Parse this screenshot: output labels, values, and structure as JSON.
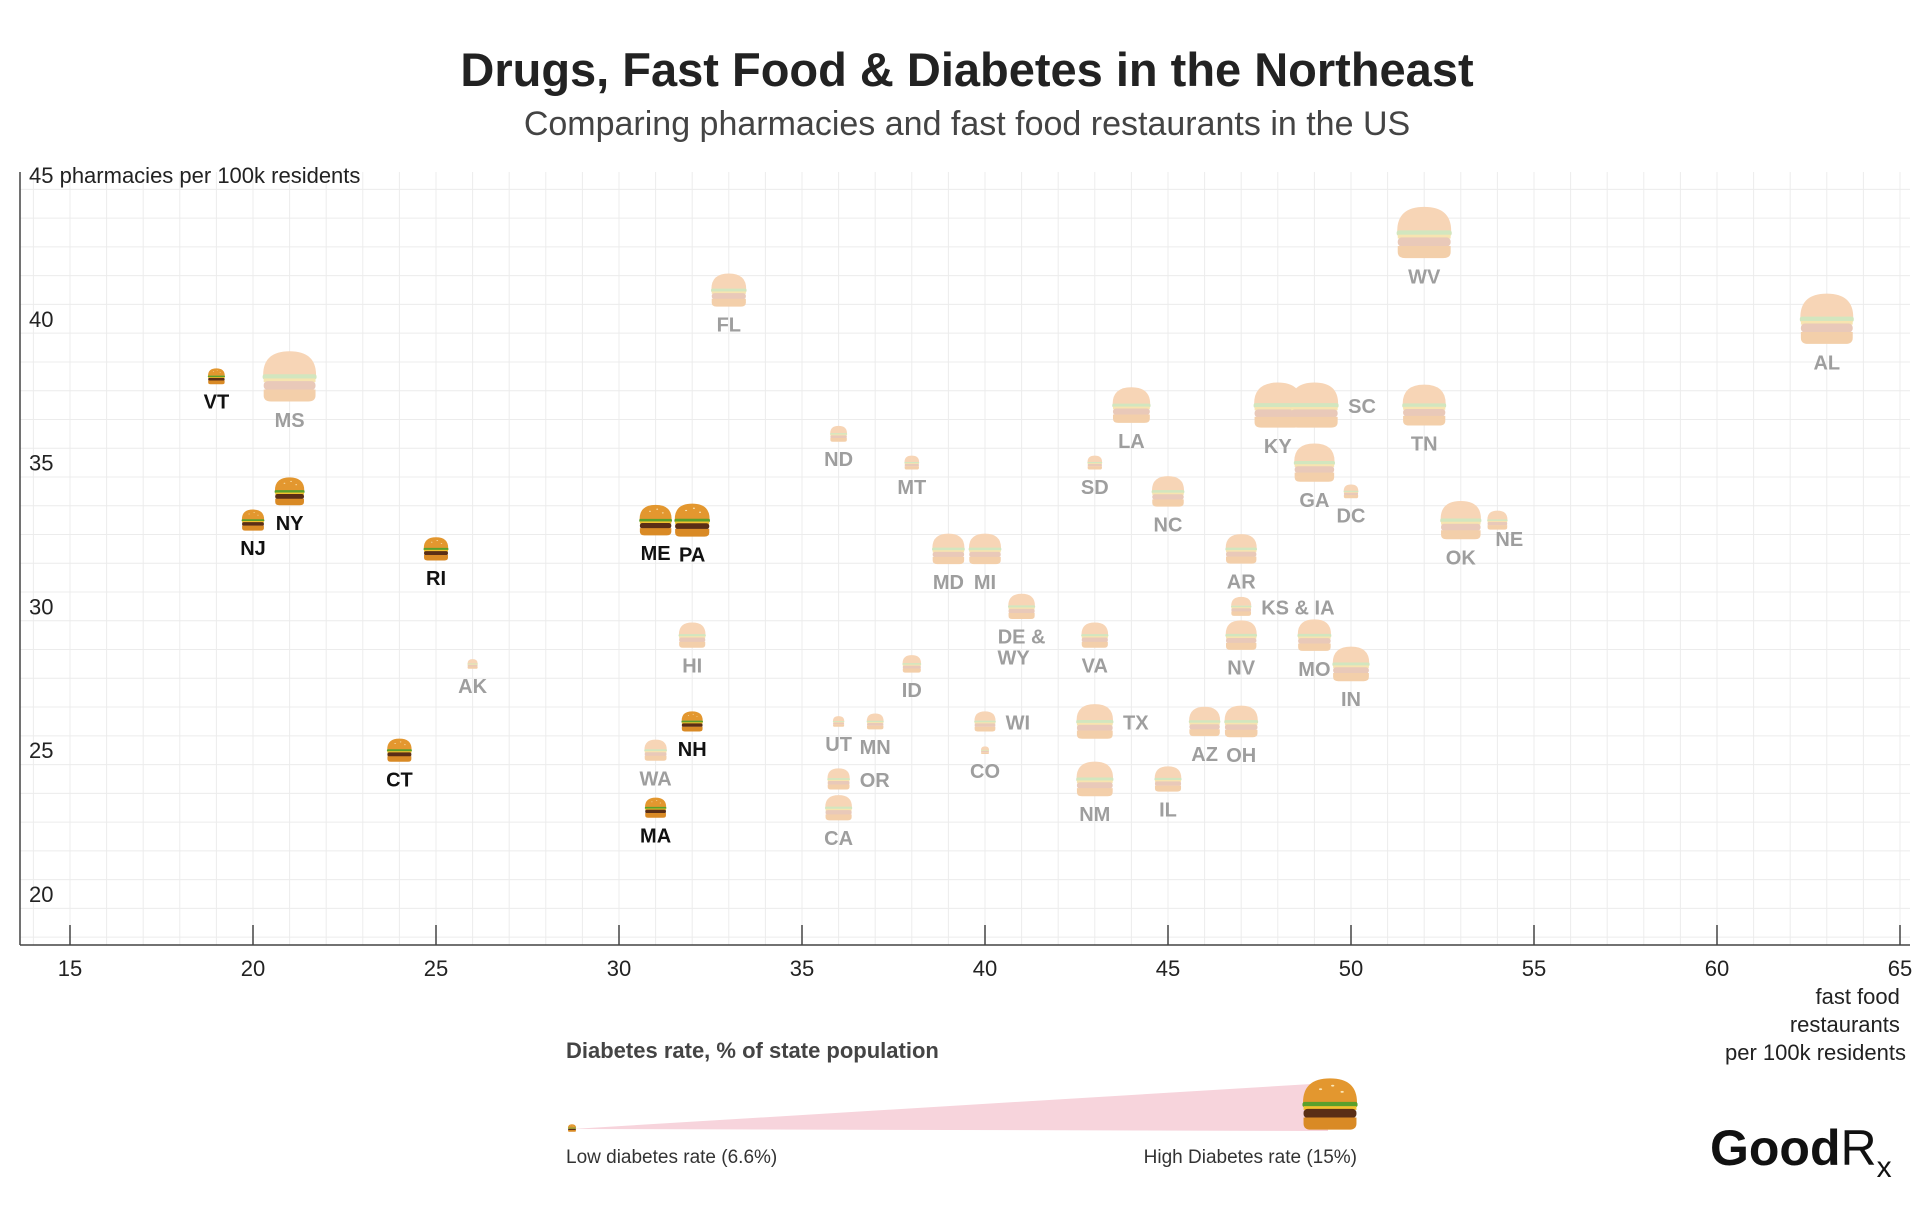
{
  "chart_data": {
    "type": "scatter",
    "title": "Drugs, Fast Food & Diabetes in the Northeast",
    "subtitle": "Comparing pharmacies and fast food restaurants in the US",
    "xlabel": [
      "fast food",
      "restaurants",
      "per 100k residents"
    ],
    "ylabel": "pharmacies per 100k residents",
    "xlim": [
      14,
      65.5
    ],
    "ylim": [
      18.3,
      45.5
    ],
    "xticks": [
      15,
      20,
      25,
      30,
      35,
      40,
      45,
      50,
      55,
      60,
      65
    ],
    "yticks": [
      20,
      25,
      30,
      35,
      40,
      45
    ],
    "grid": true,
    "marker": "burger-icon",
    "highlight_colors": {
      "bun": "#e09a3a",
      "bun_dark": "#c97a22",
      "lettuce": "#5aa02c",
      "patty": "#5a2e16",
      "cheese": "#f2c12e"
    },
    "muted_color": "#f5d5b8",
    "muted_label_color": "#9e9e9e",
    "highlight_label_color": "#111111",
    "size_scale": {
      "min_rate": 6.6,
      "max_rate": 15
    },
    "points": [
      {
        "label": "VT",
        "x": 19,
        "y": 38,
        "rate": 8.2,
        "highlight": true
      },
      {
        "label": "MS",
        "x": 21,
        "y": 38,
        "rate": 14.8,
        "highlight": false
      },
      {
        "label": "NY",
        "x": 21,
        "y": 34,
        "rate": 10.5,
        "highlight": true
      },
      {
        "label": "NJ",
        "x": 20,
        "y": 33,
        "rate": 9.2,
        "highlight": true
      },
      {
        "label": "RI",
        "x": 25,
        "y": 32,
        "rate": 9.6,
        "highlight": true
      },
      {
        "label": "CT",
        "x": 24,
        "y": 25,
        "rate": 9.6,
        "highlight": true
      },
      {
        "label": "AK",
        "x": 26,
        "y": 28,
        "rate": 7.0,
        "highlight": false
      },
      {
        "label": "ME",
        "x": 31,
        "y": 33,
        "rate": 11.0,
        "highlight": true
      },
      {
        "label": "PA",
        "x": 32,
        "y": 33,
        "rate": 11.5,
        "highlight": true
      },
      {
        "label": "HI",
        "x": 32,
        "y": 29,
        "rate": 10.0,
        "highlight": false
      },
      {
        "label": "NH",
        "x": 32,
        "y": 26,
        "rate": 9.0,
        "highlight": true
      },
      {
        "label": "WA",
        "x": 31,
        "y": 25,
        "rate": 9.2,
        "highlight": false
      },
      {
        "label": "MA",
        "x": 31,
        "y": 23,
        "rate": 9.0,
        "highlight": true
      },
      {
        "label": "FL",
        "x": 33,
        "y": 41,
        "rate": 11.5,
        "highlight": false
      },
      {
        "label": "ND",
        "x": 36,
        "y": 36,
        "rate": 8.2,
        "highlight": false
      },
      {
        "label": "UT",
        "x": 36,
        "y": 26,
        "rate": 7.2,
        "highlight": false
      },
      {
        "label": "MN",
        "x": 37,
        "y": 26,
        "rate": 8.2,
        "highlight": false
      },
      {
        "label": "OR",
        "x": 36,
        "y": 24,
        "rate": 9.2,
        "highlight": false
      },
      {
        "label": "CA",
        "x": 36,
        "y": 23,
        "rate": 10.0,
        "highlight": false
      },
      {
        "label": "MT",
        "x": 38,
        "y": 35,
        "rate": 7.8,
        "highlight": false
      },
      {
        "label": "ID",
        "x": 38,
        "y": 28,
        "rate": 8.5,
        "highlight": false
      },
      {
        "label": "MD",
        "x": 39,
        "y": 32,
        "rate": 11.0,
        "highlight": false
      },
      {
        "label": "MI",
        "x": 40,
        "y": 32,
        "rate": 11.0,
        "highlight": false
      },
      {
        "label": "WI",
        "x": 40,
        "y": 26,
        "rate": 9.0,
        "highlight": false
      },
      {
        "label": "CO",
        "x": 40,
        "y": 25,
        "rate": 6.6,
        "highlight": false
      },
      {
        "label": "DE & WY",
        "x": 41,
        "y": 30,
        "rate": 10.0,
        "highlight": false
      },
      {
        "label": "SD",
        "x": 43,
        "y": 35,
        "rate": 7.8,
        "highlight": false
      },
      {
        "label": "VA",
        "x": 43,
        "y": 29,
        "rate": 10.0,
        "highlight": false
      },
      {
        "label": "TX",
        "x": 43,
        "y": 26,
        "rate": 11.8,
        "highlight": false
      },
      {
        "label": "NM",
        "x": 43,
        "y": 24,
        "rate": 11.8,
        "highlight": false
      },
      {
        "label": "LA",
        "x": 44,
        "y": 37,
        "rate": 12.0,
        "highlight": false
      },
      {
        "label": "NC",
        "x": 45,
        "y": 34,
        "rate": 11.0,
        "highlight": false
      },
      {
        "label": "IL",
        "x": 45,
        "y": 24,
        "rate": 10.0,
        "highlight": false
      },
      {
        "label": "AZ",
        "x": 46,
        "y": 26,
        "rate": 10.8,
        "highlight": false
      },
      {
        "label": "OH",
        "x": 47,
        "y": 26,
        "rate": 11.2,
        "highlight": false
      },
      {
        "label": "AR",
        "x": 47,
        "y": 32,
        "rate": 10.8,
        "highlight": false
      },
      {
        "label": "KS & IA",
        "x": 47,
        "y": 30,
        "rate": 8.8,
        "highlight": false
      },
      {
        "label": "NV",
        "x": 47,
        "y": 29,
        "rate": 10.8,
        "highlight": false
      },
      {
        "label": "KY",
        "x": 48,
        "y": 37,
        "rate": 13.8,
        "highlight": false
      },
      {
        "label": "SC",
        "x": 49,
        "y": 37,
        "rate": 13.8,
        "highlight": false
      },
      {
        "label": "GA",
        "x": 49,
        "y": 35,
        "rate": 12.5,
        "highlight": false
      },
      {
        "label": "MO",
        "x": 49,
        "y": 29,
        "rate": 11.2,
        "highlight": false
      },
      {
        "label": "DC",
        "x": 50,
        "y": 34,
        "rate": 7.8,
        "highlight": false
      },
      {
        "label": "IN",
        "x": 50,
        "y": 28,
        "rate": 11.8,
        "highlight": false
      },
      {
        "label": "WV",
        "x": 52,
        "y": 43,
        "rate": 15.0,
        "highlight": false
      },
      {
        "label": "TN",
        "x": 52,
        "y": 37,
        "rate": 13.0,
        "highlight": false
      },
      {
        "label": "OK",
        "x": 53,
        "y": 33,
        "rate": 12.5,
        "highlight": false
      },
      {
        "label": "NE",
        "x": 54,
        "y": 33,
        "rate": 8.8,
        "highlight": false
      },
      {
        "label": "AL",
        "x": 63,
        "y": 40,
        "rate": 14.8,
        "highlight": false
      }
    ]
  },
  "legend": {
    "title": "Diabetes rate, % of state population",
    "low_label": "Low diabetes rate (6.6%)",
    "high_label": "High Diabetes rate (15%)",
    "wedge_color": "#f7d4dc"
  },
  "brand": {
    "name": "GoodRx",
    "icon": "goodrx-logo-icon"
  }
}
